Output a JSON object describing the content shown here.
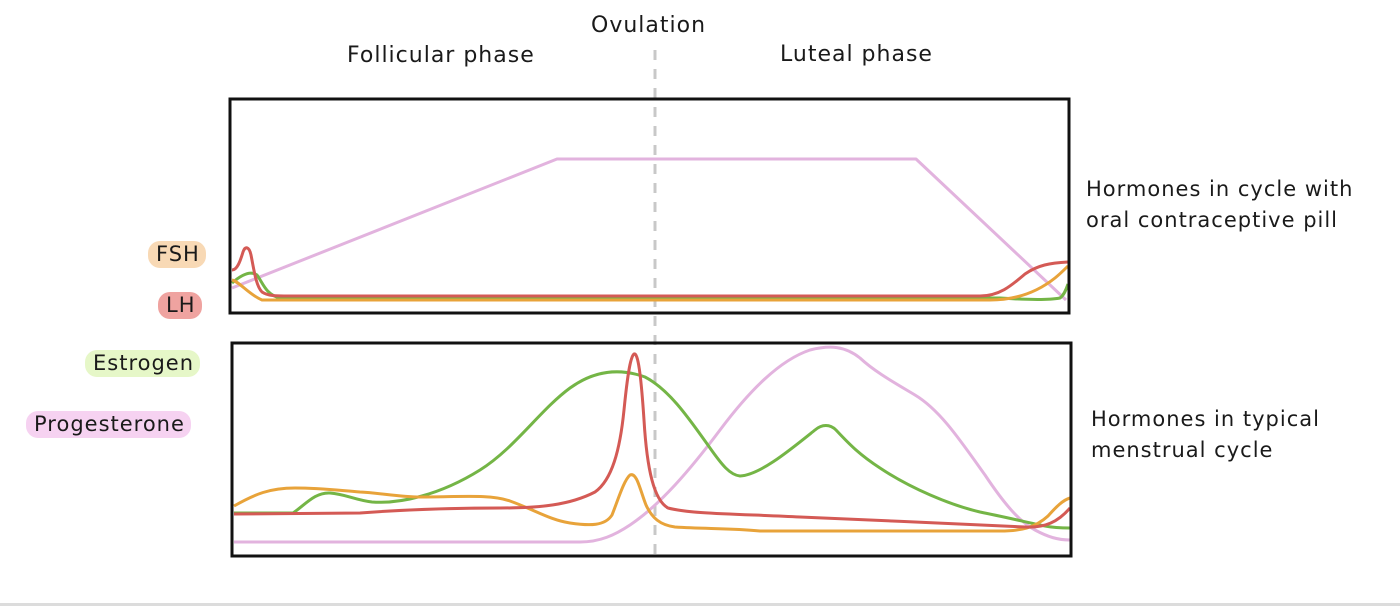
{
  "labels": {
    "follicular": "Follicular phase",
    "ovulation": "Ovulation",
    "luteal": "Luteal phase"
  },
  "captions": {
    "pill": [
      "Hormones in cycle with",
      "oral contraceptive pill"
    ],
    "typical": [
      "Hormones in typical",
      "menstrual cycle"
    ]
  },
  "legend": [
    {
      "key": "fsh",
      "label": "FSH",
      "color": "#E8A33A",
      "chip": "#F8D9B5"
    },
    {
      "key": "lh",
      "label": "LH",
      "color": "#D45A55",
      "chip": "#EFA3A0"
    },
    {
      "key": "estrogen",
      "label": "Estrogen",
      "color": "#74B546",
      "chip": "#E6F7C8"
    },
    {
      "key": "progesterone",
      "label": "Progesterone",
      "color": "#E2B3DE",
      "chip": "#F6D2F1"
    }
  ],
  "colors": {
    "frame": "#111111",
    "ovulation_line": "#C8C8C8"
  }
}
